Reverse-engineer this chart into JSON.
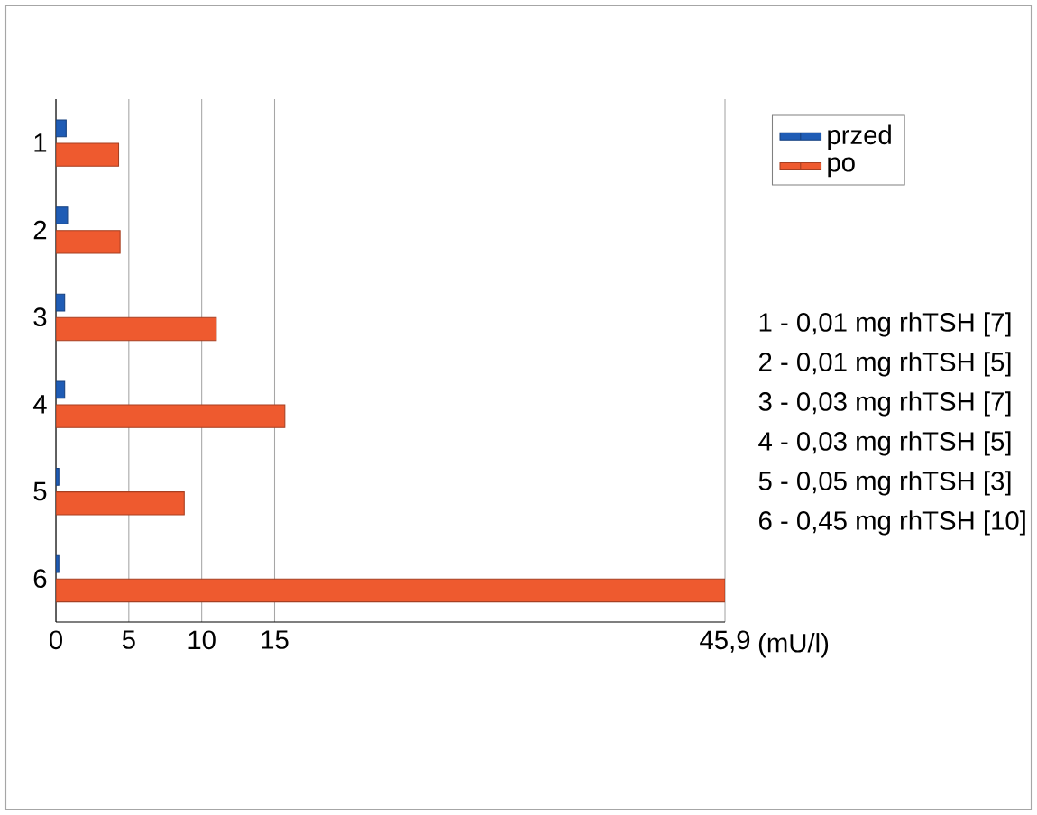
{
  "chart_data": {
    "type": "bar",
    "orientation": "horizontal",
    "categories": [
      "1",
      "2",
      "3",
      "4",
      "5",
      "6"
    ],
    "xlabel": "(mU/l)",
    "series": [
      {
        "name": "przed",
        "color": "#1f5cb5",
        "values": [
          0.7,
          0.8,
          0.6,
          0.6,
          0.2,
          0.2
        ]
      },
      {
        "name": "po",
        "color": "#ee5a2f",
        "values": [
          4.3,
          4.4,
          11.0,
          15.7,
          8.8,
          45.9
        ]
      }
    ],
    "xlim": [
      0,
      45.9
    ],
    "xticks": [
      0,
      5,
      10,
      15,
      {
        "value": 45.9,
        "label": "45,9"
      }
    ],
    "grid": "x",
    "legend": "top right",
    "annotations": [
      "1 - 0,01 mg rhTSH [7]",
      "2 - 0,01 mg rhTSH [5]",
      "3 - 0,03 mg rhTSH [7]",
      "4 - 0,03 mg rhTSH [5]",
      "5 - 0,05 mg rhTSH [3]",
      "6 - 0,45 mg rhTSH [10]"
    ]
  }
}
